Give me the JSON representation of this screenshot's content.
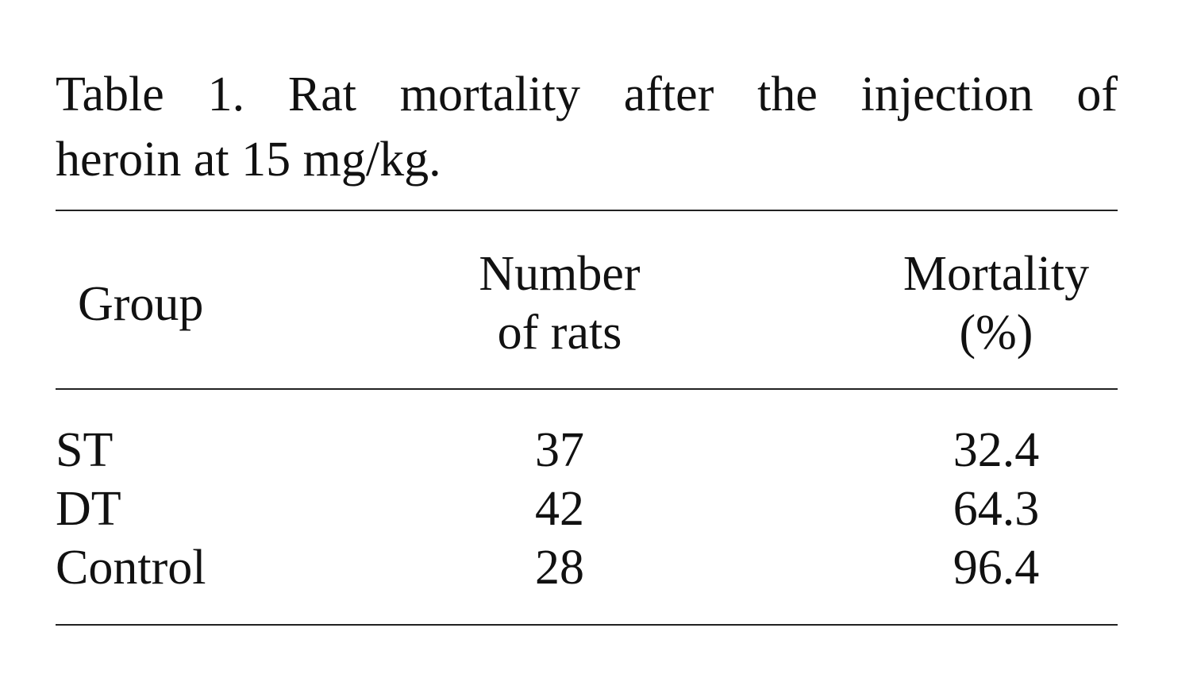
{
  "caption": {
    "line1": "Table 1. Rat mortality after the injection of",
    "line2": "heroin at 15 mg/kg."
  },
  "table": {
    "headers": {
      "group": "Group",
      "number_line1": "Number",
      "number_line2": "of rats",
      "mortality_line1": "Mortality",
      "mortality_line2": "(%)"
    },
    "rows": [
      {
        "group": "ST",
        "number": "37",
        "mortality": "32.4"
      },
      {
        "group": "DT",
        "number": "42",
        "mortality": "64.3"
      },
      {
        "group": "Control",
        "number": "28",
        "mortality": "96.4"
      }
    ]
  }
}
